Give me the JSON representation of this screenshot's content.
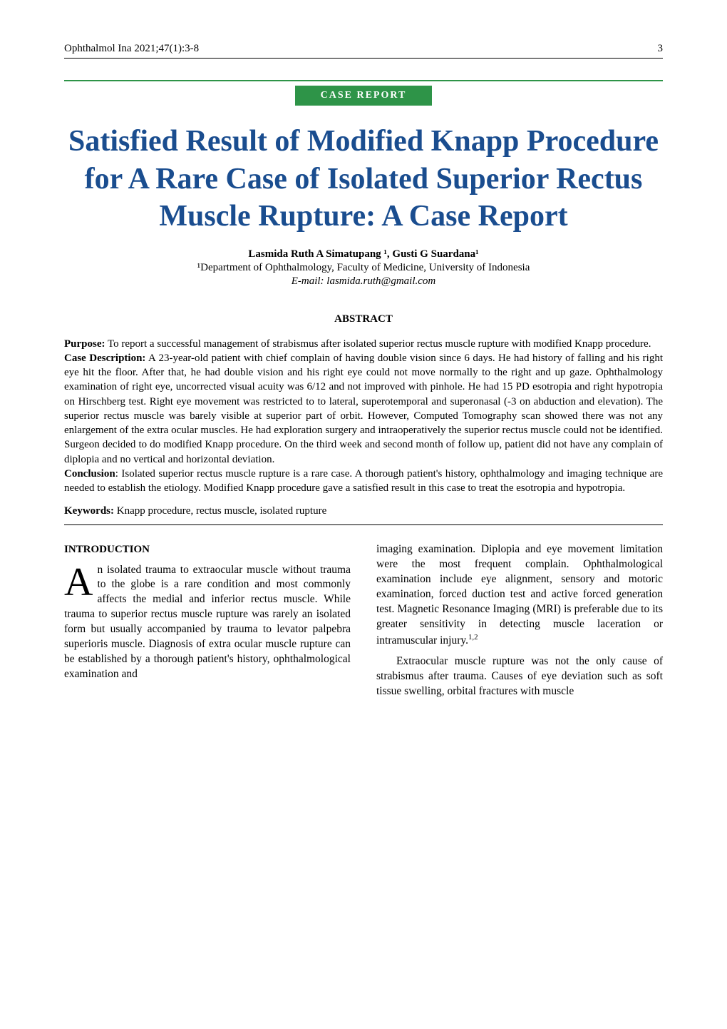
{
  "header": {
    "journal_ref": "Ophthalmol Ina 2021;47(1):3-8",
    "page_number": "3"
  },
  "badge": {
    "label": "CASE REPORT",
    "bg_color": "#2e9448",
    "text_color": "#ffffff"
  },
  "title": {
    "text": "Satisfied Result of Modified Knapp Procedure for A Rare Case of Isolated Superior Rectus Muscle Rupture: A Case Report",
    "color": "#1a4d8f"
  },
  "authors": {
    "line": "Lasmida Ruth A Simatupang ¹, Gusti G Suardana¹",
    "affiliation": "¹Department of Ophthalmology, Faculty of Medicine, University of Indonesia",
    "email": "E-mail: lasmida.ruth@gmail.com"
  },
  "abstract": {
    "heading": "ABSTRACT",
    "purpose_label": "Purpose:",
    "purpose_text": " To report a successful management of strabismus after isolated superior rectus muscle rupture with modified Knapp procedure.",
    "case_label": "Case Description:",
    "case_text": " A 23-year-old patient with chief complain of having double vision since 6 days. He had history of falling and his right eye hit the floor. After that, he had double vision and his right eye could not move normally to the right and up gaze. Ophthalmology examination of right eye, uncorrected visual acuity was 6/12 and not improved with pinhole. He had 15 PD esotropia and right hypotropia on Hirschberg test. Right eye movement was restricted to to lateral, superotemporal and superonasal (-3 on abduction and elevation). The superior rectus muscle was barely visible at superior part of orbit. However, Computed Tomography scan showed there was not any enlargement of the extra ocular muscles. He had exploration surgery and intraoperatively the superior rectus muscle could not be identified. Surgeon decided to do modified Knapp procedure. On the third week and second month of follow up, patient did not have any complain of diplopia and no vertical and horizontal deviation.",
    "conclusion_label": "Conclusion",
    "conclusion_text": ": Isolated superior rectus muscle rupture is a rare case. A thorough patient's history, ophthalmology and imaging technique are needed to establish the etiology. Modified Knapp procedure gave a satisfied result in this case to treat the esotropia and hypotropia.",
    "keywords_label": "Keywords:",
    "keywords_text": " Knapp procedure, rectus muscle, isolated rupture"
  },
  "intro": {
    "heading": "INTRODUCTION",
    "dropcap": "A",
    "col1_p1": "n isolated trauma to extraocular muscle without trauma to the globe is a rare condition and most commonly affects the medial and inferior rectus muscle. While trauma to superior rectus muscle rupture was rarely an isolated form but usually accompanied by trauma to levator palpebra superioris muscle. Diagnosis of extra ocular muscle rupture can be established by a thorough patient's history, ophthalmological examination and",
    "col2_p1": "imaging examination. Diplopia and eye movement limitation were the most frequent complain. Ophthalmological examination include eye alignment, sensory and motoric examination, forced duction test and active forced generation test. Magnetic Resonance Imaging (MRI) is preferable due to its greater sensitivity in detecting muscle laceration or intramuscular injury.",
    "col2_p1_ref": "1,2",
    "col2_p2": "Extraocular muscle rupture was not the only cause of strabismus after trauma. Causes of eye deviation such as soft tissue swelling, orbital fractures with muscle"
  }
}
